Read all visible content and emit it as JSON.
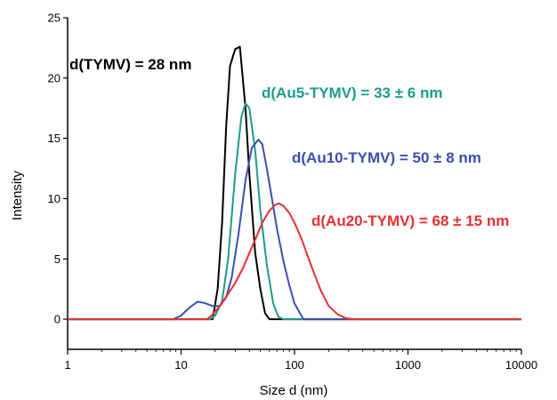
{
  "chart_data": {
    "type": "line",
    "xscale": "log",
    "xlim": [
      1,
      10000
    ],
    "ylim": [
      -2.5,
      25
    ],
    "xlabel": "Size d (nm)",
    "ylabel": "Intensity",
    "xticks": [
      1,
      10,
      100,
      1000,
      10000
    ],
    "xtick_labels": [
      "1",
      "10",
      "100",
      "1000",
      "10000"
    ],
    "yticks": [
      0,
      5,
      10,
      15,
      20,
      25
    ],
    "ytick_labels": [
      "0",
      "5",
      "10",
      "15",
      "20",
      "25"
    ],
    "grid": false,
    "series": [
      {
        "color": "#000000",
        "x": [
          1,
          19,
          21,
          23,
          25,
          27,
          30,
          33,
          37,
          40,
          45,
          50,
          55,
          60,
          10000
        ],
        "y": [
          0,
          0,
          2.5,
          8,
          16,
          21,
          22.4,
          22.6,
          17.5,
          12,
          5.5,
          2.5,
          0.5,
          0,
          0
        ]
      },
      {
        "color": "#1e9b8f",
        "x": [
          1,
          18,
          20,
          23,
          26,
          30,
          34,
          37,
          40,
          45,
          50,
          57,
          65,
          72,
          80,
          10000
        ],
        "y": [
          0,
          0,
          0.3,
          1.5,
          5,
          12,
          16.8,
          17.9,
          17.5,
          14,
          9,
          4.5,
          1.3,
          0.2,
          0,
          0
        ]
      },
      {
        "color": "#3a4eb0",
        "x": [
          1,
          8.5,
          10,
          12,
          14,
          16,
          19,
          22,
          25,
          28,
          32,
          37,
          42,
          48,
          52,
          57,
          62,
          70,
          80,
          90,
          100,
          120,
          10000
        ],
        "y": [
          0,
          0,
          0.3,
          1,
          1.45,
          1.35,
          1.1,
          1.1,
          1.8,
          3.5,
          7,
          11.5,
          14.2,
          14.9,
          14.5,
          12.5,
          10.5,
          7.5,
          4.8,
          2.8,
          1.3,
          0,
          0
        ]
      },
      {
        "color": "#e53030",
        "x": [
          1,
          17,
          19,
          22,
          26,
          30,
          35,
          40,
          46,
          52,
          60,
          68,
          73,
          80,
          90,
          100,
          115,
          130,
          150,
          170,
          200,
          240,
          280,
          330,
          10000
        ],
        "y": [
          0,
          0,
          0.4,
          1.1,
          2.1,
          3.0,
          4.2,
          5.5,
          6.8,
          8.0,
          9.0,
          9.5,
          9.6,
          9.4,
          8.8,
          8.0,
          6.7,
          5.3,
          3.7,
          2.4,
          1.1,
          0.4,
          0.1,
          0,
          0
        ]
      }
    ],
    "annotations": [
      {
        "text": "d(TYMV) = 28 nm",
        "color": "#000000"
      },
      {
        "text": "d(Au5-TYMV) = 33 ± 6 nm",
        "color": "#1e9b8f"
      },
      {
        "text": "d(Au10-TYMV) = 50 ± 8 nm",
        "color": "#3a4eb0"
      },
      {
        "text": "d(Au20-TYMV) = 68 ± 15 nm",
        "color": "#e53030"
      }
    ]
  }
}
